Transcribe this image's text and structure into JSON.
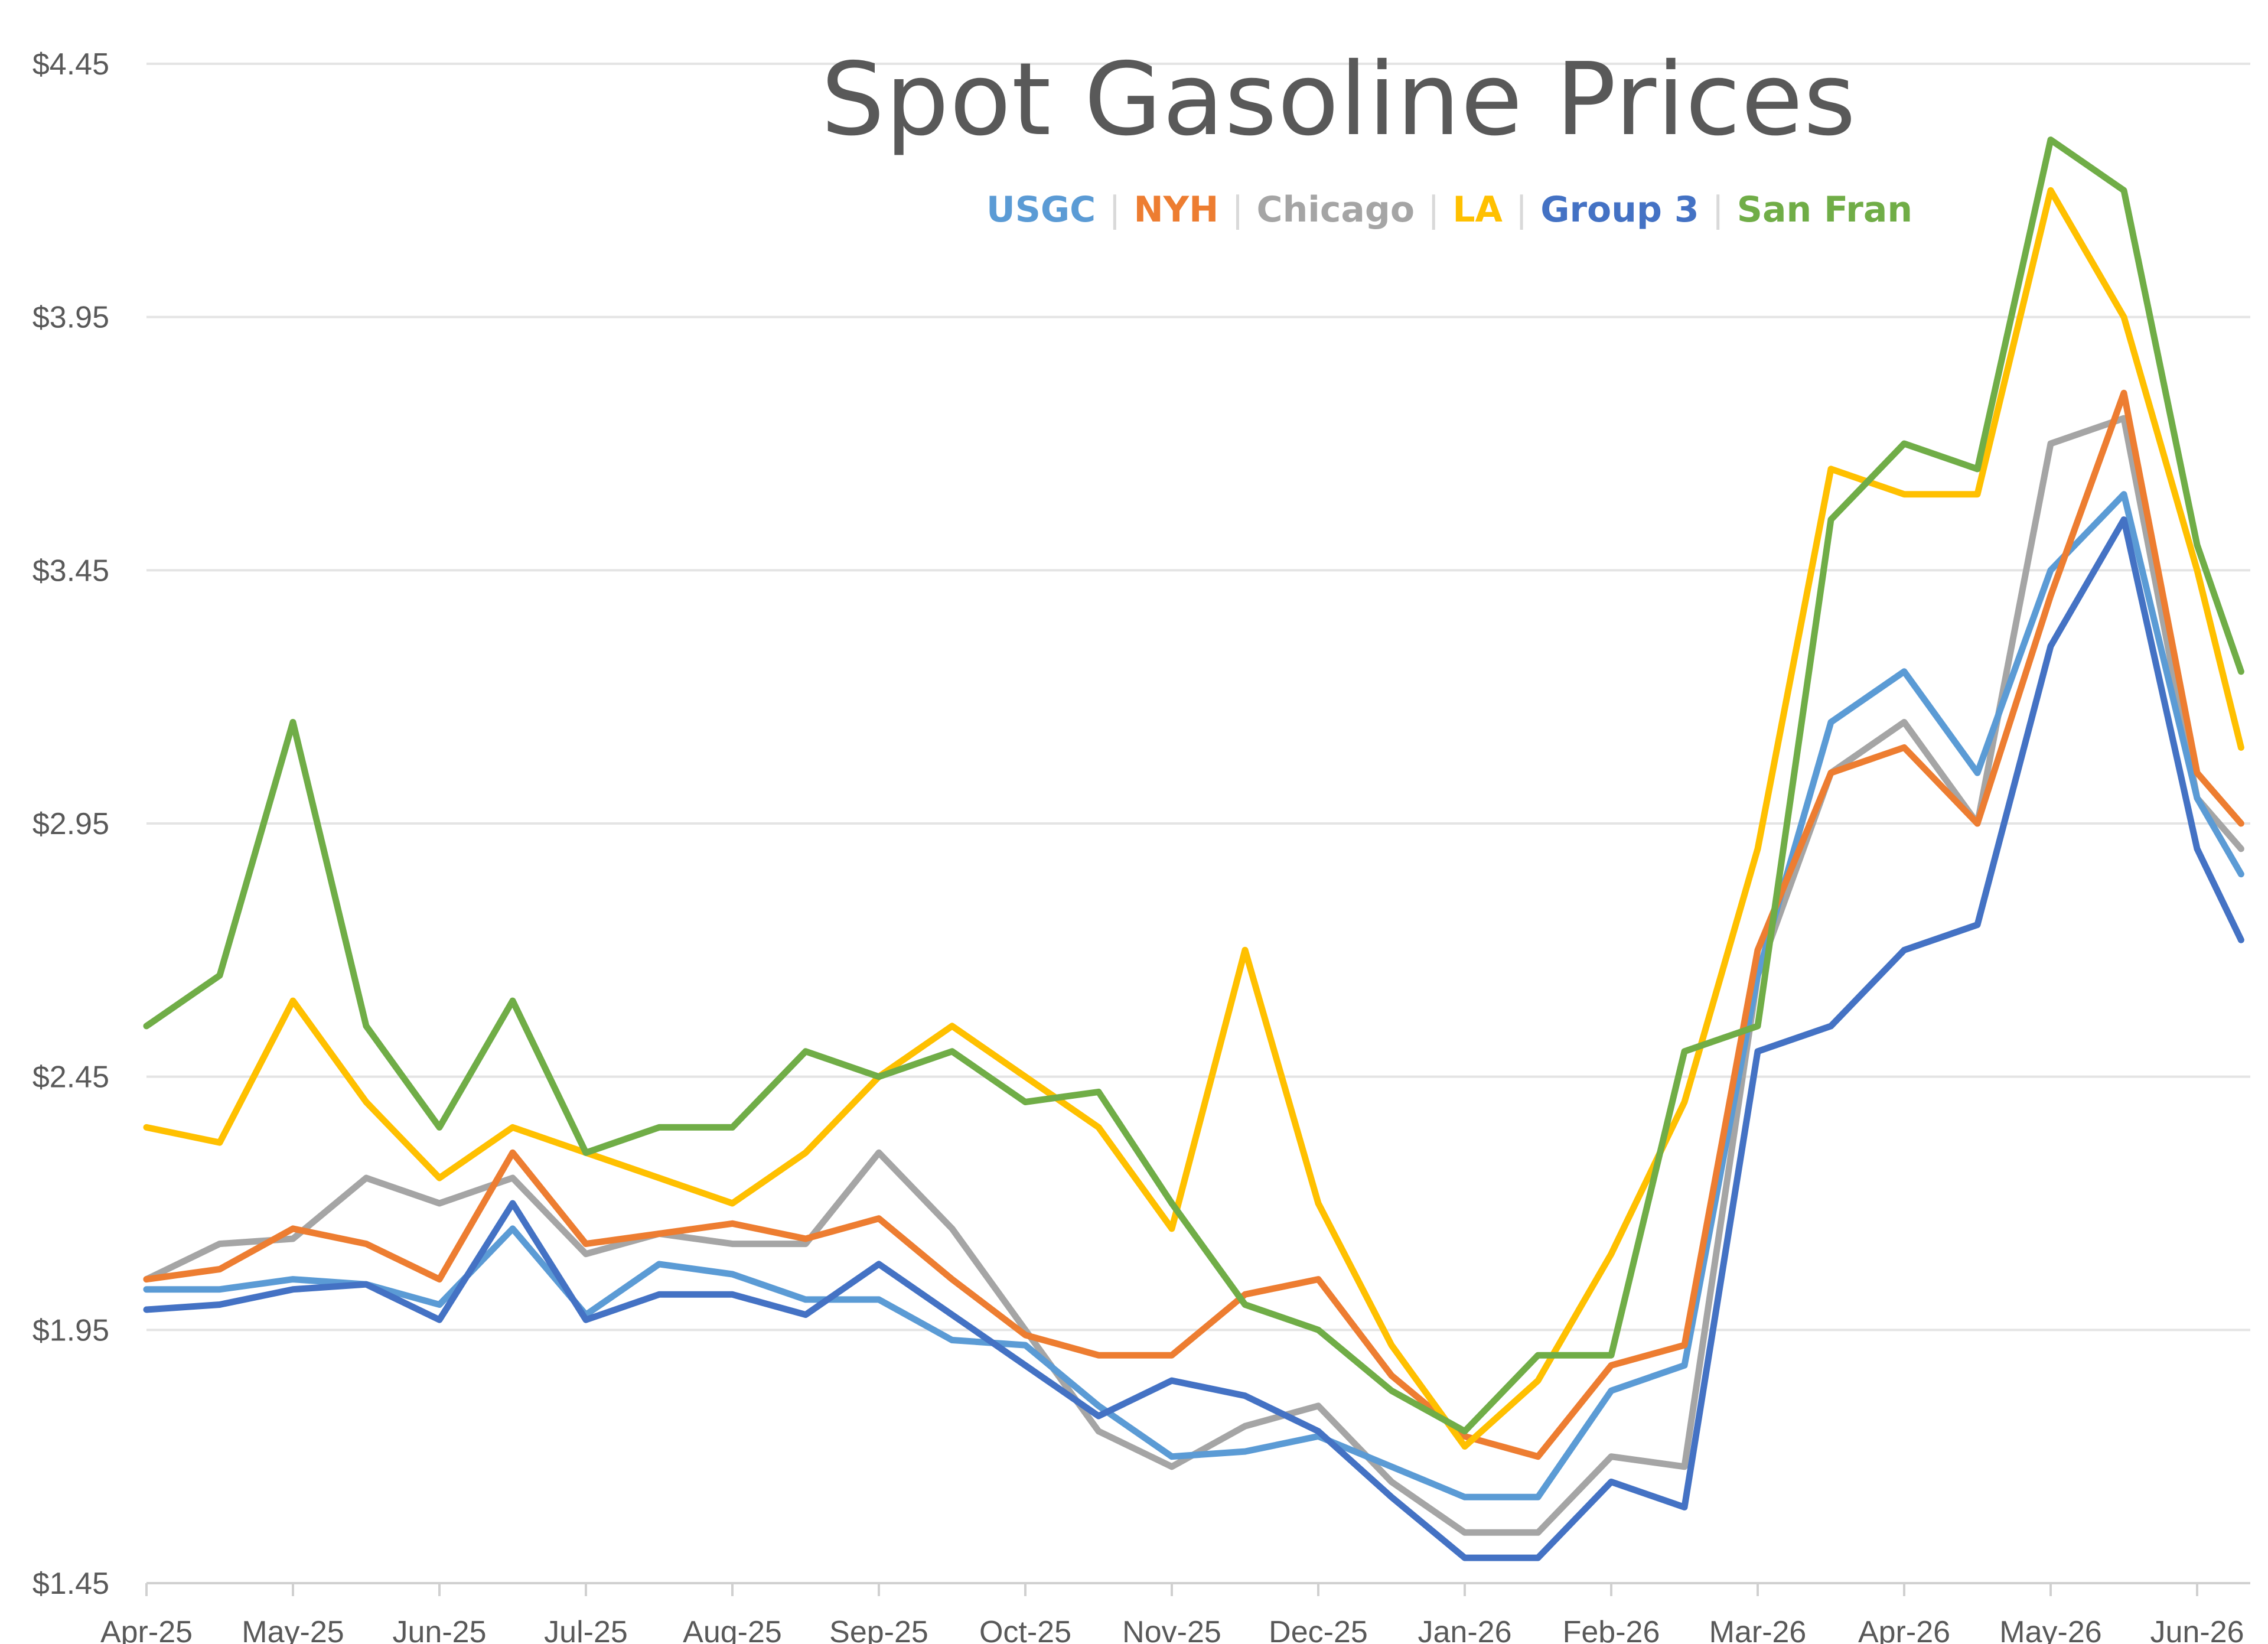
{
  "chart_data": {
    "type": "line",
    "title": "Spot Gasoline Prices",
    "xlabel": "",
    "ylabel": "",
    "ylim": [
      1.45,
      4.45
    ],
    "y_ticks": [
      "$1.45",
      "$1.95",
      "$2.45",
      "$2.95",
      "$3.45",
      "$3.95",
      "$4.45"
    ],
    "y_tick_values": [
      1.45,
      1.95,
      2.45,
      2.95,
      3.45,
      3.95,
      4.45
    ],
    "x_ticks": [
      "Apr-25",
      "May-25",
      "Jun-25",
      "Jul-25",
      "Aug-25",
      "Sep-25",
      "Oct-25",
      "Nov-25",
      "Dec-25",
      "Jan-26",
      "Feb-26",
      "Mar-26",
      "Apr-26",
      "May-26",
      "Jun-26"
    ],
    "grid": "horizontal",
    "legend_position": "top-right",
    "x_month_positions": [
      0,
      0.5,
      1,
      1.5,
      2,
      2.5,
      3,
      3.5,
      4,
      4.5,
      5,
      5.5,
      6,
      6.5,
      7,
      7.5,
      8,
      8.5,
      9,
      9.5,
      10,
      10.5,
      11,
      11.5,
      12,
      12.5,
      13,
      13.5,
      14,
      14.3
    ],
    "series": [
      {
        "name": "USGC",
        "color": "#5b9bd5",
        "values": [
          2.03,
          2.03,
          2.05,
          2.04,
          2.0,
          2.15,
          1.98,
          2.08,
          2.06,
          2.01,
          2.01,
          1.93,
          1.92,
          1.8,
          1.7,
          1.71,
          1.74,
          1.68,
          1.62,
          1.62,
          1.83,
          1.88,
          2.65,
          3.15,
          3.25,
          3.05,
          3.45,
          3.6,
          3.0,
          2.85
        ]
      },
      {
        "name": "NYH",
        "color": "#ed7d31",
        "values": [
          2.05,
          2.07,
          2.15,
          2.12,
          2.05,
          2.3,
          2.12,
          2.14,
          2.16,
          2.13,
          2.17,
          2.05,
          1.94,
          1.9,
          1.9,
          2.02,
          2.05,
          1.86,
          1.74,
          1.7,
          1.88,
          1.92,
          2.7,
          3.05,
          3.1,
          2.95,
          3.4,
          3.8,
          3.05,
          2.95
        ]
      },
      {
        "name": "Chicago",
        "color": "#a5a5a5",
        "values": [
          2.05,
          2.12,
          2.13,
          2.25,
          2.2,
          2.25,
          2.1,
          2.14,
          2.12,
          2.12,
          2.3,
          2.15,
          1.95,
          1.75,
          1.68,
          1.76,
          1.8,
          1.65,
          1.55,
          1.55,
          1.7,
          1.68,
          2.65,
          3.05,
          3.15,
          2.95,
          3.7,
          3.75,
          3.0,
          2.9
        ]
      },
      {
        "name": "LA",
        "color": "#ffc000",
        "values": [
          2.35,
          2.32,
          2.6,
          2.4,
          2.25,
          2.35,
          2.3,
          2.25,
          2.2,
          2.3,
          2.45,
          2.55,
          2.45,
          2.35,
          2.15,
          2.7,
          2.2,
          1.92,
          1.72,
          1.85,
          2.1,
          2.4,
          2.9,
          3.65,
          3.6,
          3.6,
          4.2,
          3.95,
          3.45,
          3.1
        ]
      },
      {
        "name": "Group 3",
        "color": "#4472c4",
        "values": [
          1.99,
          2.0,
          2.03,
          2.04,
          1.97,
          2.2,
          1.97,
          2.02,
          2.02,
          1.98,
          2.08,
          1.98,
          1.88,
          1.78,
          1.85,
          1.82,
          1.75,
          1.62,
          1.5,
          1.5,
          1.65,
          1.6,
          2.5,
          2.55,
          2.7,
          2.75,
          3.3,
          3.55,
          2.9,
          2.72
        ]
      },
      {
        "name": "San Fran",
        "color": "#70ad47",
        "values": [
          2.55,
          2.65,
          3.15,
          2.55,
          2.35,
          2.6,
          2.3,
          2.35,
          2.35,
          2.5,
          2.45,
          2.5,
          2.4,
          2.42,
          2.2,
          2.0,
          1.95,
          1.83,
          1.75,
          1.9,
          1.9,
          2.5,
          2.55,
          3.55,
          3.7,
          3.65,
          4.3,
          4.2,
          3.5,
          3.25
        ]
      }
    ]
  }
}
